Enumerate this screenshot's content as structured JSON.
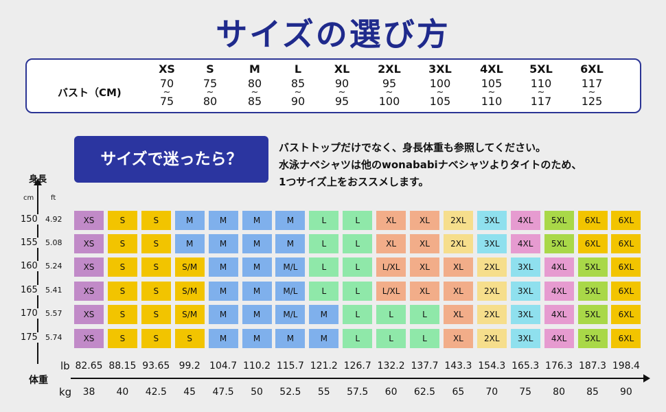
{
  "title": "サイズの選び方",
  "bust": {
    "label": "バスト（CM)",
    "tilde": "~",
    "sizes": [
      {
        "size": "XS",
        "low": "70",
        "high": "75"
      },
      {
        "size": "S",
        "low": "75",
        "high": "80"
      },
      {
        "size": "M",
        "low": "80",
        "high": "85"
      },
      {
        "size": "L",
        "low": "85",
        "high": "90"
      },
      {
        "size": "XL",
        "low": "90",
        "high": "95"
      },
      {
        "size": "2XL",
        "low": "95",
        "high": "100"
      },
      {
        "size": "3XL",
        "low": "100",
        "high": "105"
      },
      {
        "size": "4XL",
        "low": "105",
        "high": "110"
      },
      {
        "size": "5XL",
        "low": "110",
        "high": "117"
      },
      {
        "size": "6XL",
        "low": "117",
        "high": "125"
      }
    ]
  },
  "banner": "サイズで迷ったら？",
  "note": {
    "line1": "バストトップだけでなく、身長体重も参照してください。",
    "line2": "水泳ナベシャツは他のwonababiナベシャツよりタイトのため、",
    "line3": "1つサイズ上をおススメします。"
  },
  "height_axis": {
    "label": "身長",
    "unit_cm": "cm",
    "unit_ft": "ft"
  },
  "weight_axis": {
    "label": "体重",
    "unit_lb": "lb",
    "unit_kg": "kg"
  },
  "rows": [
    {
      "cm": "150",
      "ft": "4.92",
      "cells": [
        "XS",
        "S",
        "S",
        "M",
        "M",
        "M",
        "M",
        "L",
        "L",
        "XL",
        "XL",
        "2XL",
        "3XL",
        "4XL",
        "5XL",
        "6XL",
        "6XL"
      ]
    },
    {
      "cm": "155",
      "ft": "5.08",
      "cells": [
        "XS",
        "S",
        "S",
        "M",
        "M",
        "M",
        "M",
        "L",
        "L",
        "XL",
        "XL",
        "2XL",
        "3XL",
        "4XL",
        "5XL",
        "6XL",
        "6XL"
      ]
    },
    {
      "cm": "160",
      "ft": "5.24",
      "cells": [
        "XS",
        "S",
        "S",
        "S/M",
        "M",
        "M",
        "M/L",
        "L",
        "L",
        "L/XL",
        "XL",
        "XL",
        "2XL",
        "3XL",
        "4XL",
        "5XL",
        "6XL"
      ]
    },
    {
      "cm": "165",
      "ft": "5.41",
      "cells": [
        "XS",
        "S",
        "S",
        "S/M",
        "M",
        "M",
        "M/L",
        "L",
        "L",
        "L/XL",
        "XL",
        "XL",
        "2XL",
        "3XL",
        "4XL",
        "5XL",
        "6XL"
      ]
    },
    {
      "cm": "170",
      "ft": "5.57",
      "cells": [
        "XS",
        "S",
        "S",
        "S/M",
        "M",
        "M",
        "M/L",
        "M",
        "L",
        "L",
        "L",
        "XL",
        "2XL",
        "3XL",
        "4XL",
        "5XL",
        "6XL"
      ]
    },
    {
      "cm": "175",
      "ft": "5.74",
      "cells": [
        "XS",
        "S",
        "S",
        "S",
        "M",
        "M",
        "M",
        "M",
        "L",
        "L",
        "L",
        "XL",
        "2XL",
        "3XL",
        "4XL",
        "5XL",
        "6XL"
      ]
    }
  ],
  "weights_lb": [
    "82.65",
    "88.15",
    "93.65",
    "99.2",
    "104.7",
    "110.2",
    "115.7",
    "121.2",
    "126.7",
    "132.2",
    "137.7",
    "143.3",
    "154.3",
    "165.3",
    "176.3",
    "187.3",
    "198.4"
  ],
  "weights_kg": [
    "38",
    "40",
    "42.5",
    "45",
    "47.5",
    "50",
    "52.5",
    "55",
    "57.5",
    "60",
    "62.5",
    "65",
    "70",
    "75",
    "80",
    "85",
    "90"
  ]
}
